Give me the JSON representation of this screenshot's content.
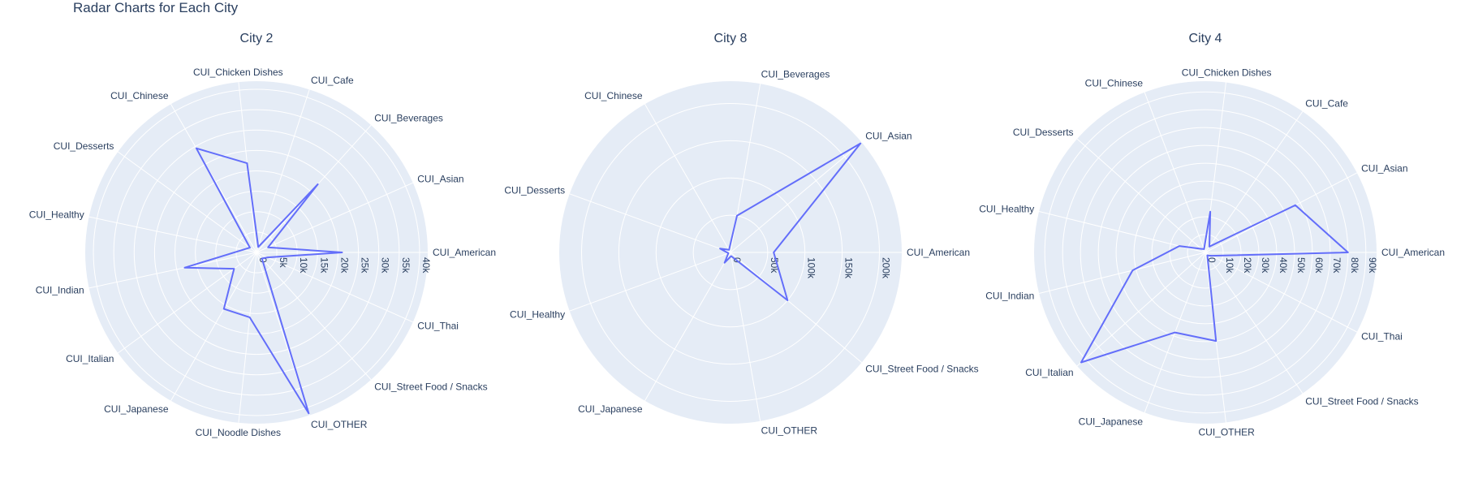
{
  "title": "Radar Charts for Each City",
  "chart_data": [
    {
      "type": "radar",
      "title": "City 2",
      "rmax": 42000,
      "ticks": [
        0,
        5000,
        10000,
        15000,
        20000,
        25000,
        30000,
        35000,
        40000
      ],
      "tick_labels": [
        "0",
        "5k",
        "10k",
        "15k",
        "20k",
        "25k",
        "30k",
        "35k",
        "40k"
      ],
      "categories": [
        "CUI_American",
        "CUI_Asian",
        "CUI_Beverages",
        "CUI_Cafe",
        "CUI_Chicken Dishes",
        "CUI_Chinese",
        "CUI_Desserts",
        "CUI_Healthy",
        "CUI_Indian",
        "CUI_Italian",
        "CUI_Japanese",
        "CUI_Noodle Dishes",
        "CUI_OTHER",
        "CUI_Street Food / Snacks",
        "CUI_Thai"
      ],
      "series": [
        {
          "values": [
            21000,
            3100,
            22500,
            1400,
            22000,
            29500,
            2000,
            3300,
            18000,
            6800,
            16000,
            16000,
            41500,
            2000,
            3000
          ]
        }
      ]
    },
    {
      "type": "radar",
      "title": "City 8",
      "rmax": 230000,
      "ticks": [
        0,
        50000,
        100000,
        150000,
        200000
      ],
      "tick_labels": [
        "0",
        "50k",
        "100k",
        "150k",
        "200k"
      ],
      "categories": [
        "CUI_American",
        "CUI_Asian",
        "CUI_Beverages",
        "CUI_Chinese",
        "CUI_Desserts",
        "CUI_Healthy",
        "CUI_Japanese",
        "CUI_OTHER",
        "CUI_Street Food / Snacks"
      ],
      "series": [
        {
          "values": [
            58000,
            228000,
            50000,
            4000,
            15000,
            3000,
            16000,
            5000,
            100000
          ]
        }
      ]
    },
    {
      "type": "radar",
      "title": "City 4",
      "rmax": 96000,
      "ticks": [
        0,
        10000,
        20000,
        30000,
        40000,
        50000,
        60000,
        70000,
        80000,
        90000
      ],
      "tick_labels": [
        "0",
        "10k",
        "20k",
        "30k",
        "40k",
        "50k",
        "60k",
        "70k",
        "80k",
        "90k"
      ],
      "categories": [
        "CUI_American",
        "CUI_Asian",
        "CUI_Cafe",
        "CUI_Chicken Dishes",
        "CUI_Chinese",
        "CUI_Desserts",
        "CUI_Healthy",
        "CUI_Indian",
        "CUI_Italian",
        "CUI_Japanese",
        "CUI_OTHER",
        "CUI_Street Food / Snacks",
        "CUI_Thai"
      ],
      "series": [
        {
          "values": [
            80000,
            57000,
            4000,
            23000,
            2000,
            3000,
            15000,
            42000,
            93000,
            48000,
            50000,
            2000,
            4000
          ]
        }
      ]
    }
  ]
}
